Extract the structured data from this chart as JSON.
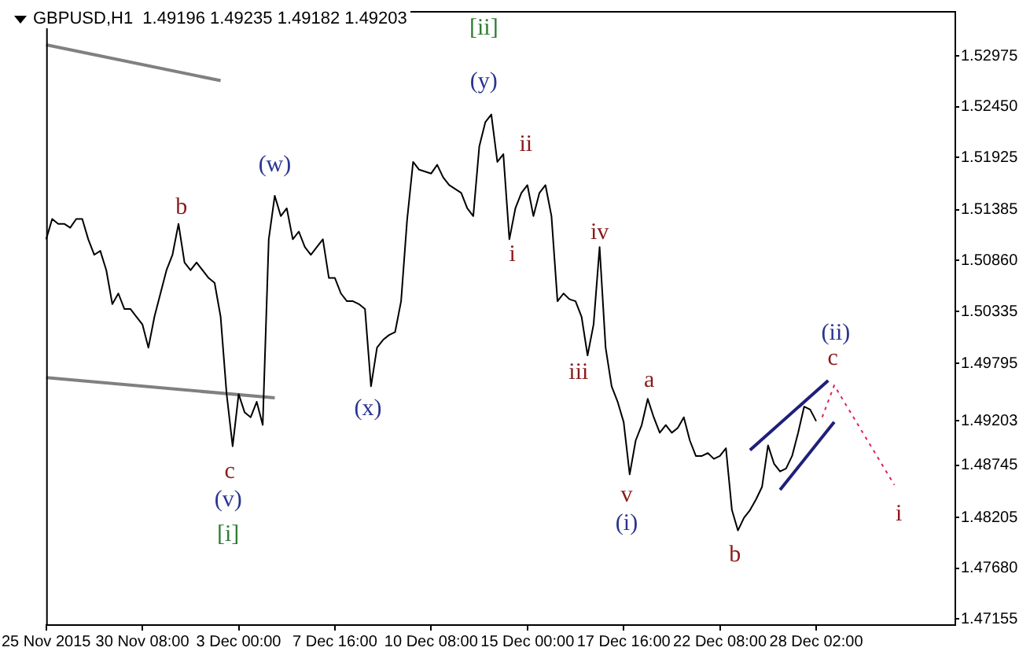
{
  "chart_data": {
    "type": "line",
    "title": "GBPUSD,H1  1.49196 1.49235 1.49182 1.49203",
    "categories": [
      "25 Nov 2015",
      null,
      null,
      null,
      null,
      null,
      null,
      null,
      null,
      null,
      null,
      null,
      null,
      null,
      null,
      null,
      "30 Nov 08:00",
      null,
      null,
      null,
      null,
      null,
      null,
      null,
      null,
      null,
      null,
      null,
      null,
      null,
      null,
      null,
      "3 Dec 00:00",
      null,
      null,
      null,
      null,
      null,
      null,
      null,
      null,
      null,
      null,
      null,
      null,
      null,
      null,
      null,
      "7 Dec 16:00",
      null,
      null,
      null,
      null,
      null,
      null,
      null,
      null,
      null,
      null,
      null,
      null,
      null,
      null,
      null,
      "10 Dec 08:00",
      null,
      null,
      null,
      null,
      null,
      null,
      null,
      null,
      null,
      null,
      null,
      null,
      null,
      null,
      null,
      "15 Dec 00:00",
      null,
      null,
      null,
      null,
      null,
      null,
      null,
      null,
      null,
      null,
      null,
      null,
      null,
      null,
      null,
      "17 Dec 16:00",
      null,
      null,
      null,
      null,
      null,
      null,
      null,
      null,
      null,
      null,
      null,
      null,
      null,
      null,
      null,
      "22 Dec 08:00",
      null,
      null,
      null,
      null,
      null,
      null,
      null,
      null,
      null,
      null,
      null,
      null,
      null,
      null,
      null,
      "28 Dec 02:00",
      null,
      null,
      null,
      null,
      null,
      null,
      null,
      null,
      null,
      null,
      null,
      null,
      null,
      null,
      null,
      null,
      null,
      null,
      null,
      null,
      null,
      null,
      null
    ],
    "ylim": [
      1.471,
      1.5344
    ],
    "yticks": [
      1.52975,
      {
        "value": 1.5245,
        "label": "1.52450"
      },
      1.51925,
      1.51385,
      {
        "value": 1.5086,
        "label": "1.50860"
      },
      1.50335,
      1.49795,
      1.49203,
      1.48745,
      1.48205,
      {
        "value": 1.4768,
        "label": "1.47680"
      },
      1.47155
    ],
    "grid": false,
    "legend": false,
    "marker": "none",
    "series": [
      {
        "color": "#000000",
        "values": [
          1.5108,
          1.5129,
          1.5124,
          1.5124,
          1.512,
          1.5129,
          1.5129,
          1.5108,
          1.5092,
          1.5096,
          1.5076,
          1.5041,
          1.5052,
          1.5036,
          1.5036,
          1.5028,
          1.502,
          1.4996,
          1.5028,
          1.5052,
          1.5076,
          1.5092,
          1.5124,
          1.5084,
          1.5076,
          1.5084,
          1.5076,
          1.5068,
          1.5063,
          1.5028,
          1.4948,
          1.4894,
          1.4948,
          1.4929,
          1.4924,
          1.494,
          1.4916,
          1.5108,
          1.5153,
          1.5132,
          1.514,
          1.5108,
          1.5116,
          1.51,
          1.5092,
          1.51,
          1.5108,
          1.5068,
          1.5068,
          1.5052,
          1.5044,
          1.5044,
          1.5041,
          1.5036,
          1.4956,
          1.4996,
          1.5004,
          1.5009,
          1.5012,
          1.5044,
          1.5128,
          1.5188,
          1.518,
          1.5178,
          1.5176,
          1.5185,
          1.5172,
          1.5164,
          1.516,
          1.5156,
          1.514,
          1.5132,
          1.5204,
          1.5229,
          1.5237,
          1.5188,
          1.5196,
          1.5108,
          1.514,
          1.5156,
          1.5164,
          1.5132,
          1.5156,
          1.5164,
          1.5132,
          1.5044,
          1.5052,
          1.5046,
          1.5044,
          1.5028,
          1.4988,
          1.502,
          1.51,
          1.4996,
          1.4956,
          1.494,
          1.4919,
          1.4865,
          1.49,
          1.4916,
          1.4943,
          1.4924,
          1.4908,
          1.4916,
          1.4908,
          1.4913,
          1.4924,
          1.49,
          1.4884,
          1.4884,
          1.4887,
          1.4881,
          1.4884,
          1.4892,
          1.4828,
          1.4807,
          1.482,
          1.4828,
          1.4839,
          1.4852,
          1.4895,
          1.4876,
          1.4868,
          1.4871,
          1.4884,
          1.4908,
          1.4935,
          1.4932,
          1.492,
          null,
          null,
          null,
          null,
          null,
          null,
          null,
          null,
          null,
          null,
          null,
          null,
          null,
          null,
          null,
          null,
          null,
          null,
          null,
          null,
          null,
          null,
          null
        ]
      },
      {
        "color": "#808080",
        "values": [
          1.5309,
          null,
          null,
          null,
          null,
          null,
          null,
          null,
          null,
          null,
          null,
          null,
          null,
          null,
          null,
          null,
          null,
          null,
          null,
          null,
          null,
          null,
          null,
          null,
          null,
          null,
          null,
          null,
          null,
          1.5272,
          null,
          null,
          null,
          null,
          null,
          null,
          null,
          null,
          null,
          null,
          null,
          null,
          null,
          null,
          null,
          null,
          null,
          null,
          null,
          null,
          null,
          null,
          null,
          null,
          null,
          null,
          null,
          null,
          null,
          null,
          null,
          null,
          null,
          null,
          null,
          null,
          null,
          null,
          null,
          null,
          null,
          null,
          null,
          null,
          null,
          null,
          null,
          null,
          null,
          null,
          null,
          null,
          null,
          null,
          null,
          null,
          null,
          null,
          null,
          null,
          null,
          null,
          null,
          null,
          null,
          null,
          null,
          null,
          null,
          null,
          null,
          null,
          null,
          null,
          null,
          null,
          null,
          null,
          null,
          null,
          null,
          null,
          null,
          null,
          null,
          null,
          null,
          null,
          null,
          null,
          null,
          null,
          null,
          null,
          null,
          null,
          null,
          null,
          null,
          null,
          null,
          null,
          null,
          null,
          null,
          null,
          null,
          null,
          null,
          null,
          null,
          null,
          null,
          null,
          null,
          null,
          null,
          null,
          null,
          null,
          null,
          null
        ]
      },
      {
        "color": "#808080",
        "values": [
          1.4965,
          null,
          null,
          null,
          null,
          null,
          null,
          null,
          null,
          null,
          null,
          null,
          null,
          null,
          null,
          null,
          null,
          null,
          null,
          null,
          null,
          null,
          null,
          null,
          null,
          null,
          null,
          null,
          null,
          null,
          null,
          null,
          null,
          null,
          null,
          null,
          null,
          null,
          1.4944,
          null,
          null,
          null,
          null,
          null,
          null,
          null,
          null,
          null,
          null,
          null,
          null,
          null,
          null,
          null,
          null,
          null,
          null,
          null,
          null,
          null,
          null,
          null,
          null,
          null,
          null,
          null,
          null,
          null,
          null,
          null,
          null,
          null,
          null,
          null,
          null,
          null,
          null,
          null,
          null,
          null,
          null,
          null,
          null,
          null,
          null,
          null,
          null,
          null,
          null,
          null,
          null,
          null,
          null,
          null,
          null,
          null,
          null,
          null,
          null,
          null,
          null,
          null,
          null,
          null,
          null,
          null,
          null,
          null,
          null,
          null,
          null,
          null,
          null,
          null,
          null,
          null,
          null,
          null,
          null,
          null,
          null,
          null,
          null,
          null,
          null,
          null,
          null,
          null,
          null,
          null,
          null,
          null,
          null,
          null,
          null,
          null,
          null,
          null,
          null,
          null,
          null,
          null,
          null,
          null,
          null,
          null,
          null,
          null,
          null,
          null,
          null,
          null
        ]
      },
      {
        "color": "#1f1f7a",
        "values": [
          null,
          null,
          null,
          null,
          null,
          null,
          null,
          null,
          null,
          null,
          null,
          null,
          null,
          null,
          null,
          null,
          null,
          null,
          null,
          null,
          null,
          null,
          null,
          null,
          null,
          null,
          null,
          null,
          null,
          null,
          null,
          null,
          null,
          null,
          null,
          null,
          null,
          null,
          null,
          null,
          null,
          null,
          null,
          null,
          null,
          null,
          null,
          null,
          null,
          null,
          null,
          null,
          null,
          null,
          null,
          null,
          null,
          null,
          null,
          null,
          null,
          null,
          null,
          null,
          null,
          null,
          null,
          null,
          null,
          null,
          null,
          null,
          null,
          null,
          null,
          null,
          null,
          null,
          null,
          null,
          null,
          null,
          null,
          null,
          null,
          null,
          null,
          null,
          null,
          null,
          null,
          null,
          null,
          null,
          null,
          null,
          null,
          null,
          null,
          null,
          null,
          null,
          null,
          null,
          null,
          null,
          null,
          null,
          null,
          null,
          null,
          null,
          null,
          null,
          null,
          null,
          null,
          1.489,
          null,
          null,
          null,
          null,
          null,
          null,
          null,
          null,
          null,
          null,
          null,
          null,
          1.4962,
          null,
          null,
          null,
          null,
          null,
          null,
          null,
          null,
          null,
          null,
          null,
          null,
          null,
          null,
          null,
          null,
          null,
          null,
          null,
          null,
          null
        ]
      },
      {
        "color": "#1f1f7a",
        "values": [
          null,
          null,
          null,
          null,
          null,
          null,
          null,
          null,
          null,
          null,
          null,
          null,
          null,
          null,
          null,
          null,
          null,
          null,
          null,
          null,
          null,
          null,
          null,
          null,
          null,
          null,
          null,
          null,
          null,
          null,
          null,
          null,
          null,
          null,
          null,
          null,
          null,
          null,
          null,
          null,
          null,
          null,
          null,
          null,
          null,
          null,
          null,
          null,
          null,
          null,
          null,
          null,
          null,
          null,
          null,
          null,
          null,
          null,
          null,
          null,
          null,
          null,
          null,
          null,
          null,
          null,
          null,
          null,
          null,
          null,
          null,
          null,
          null,
          null,
          null,
          null,
          null,
          null,
          null,
          null,
          null,
          null,
          null,
          null,
          null,
          null,
          null,
          null,
          null,
          null,
          null,
          null,
          null,
          null,
          null,
          null,
          null,
          null,
          null,
          null,
          null,
          null,
          null,
          null,
          null,
          null,
          null,
          null,
          null,
          null,
          null,
          null,
          null,
          null,
          null,
          null,
          null,
          null,
          null,
          null,
          null,
          null,
          1.4849,
          null,
          null,
          null,
          null,
          null,
          null,
          null,
          null,
          1.4919,
          null,
          null,
          null,
          null,
          null,
          null,
          null,
          null,
          null,
          null,
          null,
          null,
          null,
          null,
          null,
          null,
          null,
          null,
          null,
          null
        ]
      },
      {
        "color": "#e0205a",
        "line_style": "dotted",
        "values": [
          null,
          null,
          null,
          null,
          null,
          null,
          null,
          null,
          null,
          null,
          null,
          null,
          null,
          null,
          null,
          null,
          null,
          null,
          null,
          null,
          null,
          null,
          null,
          null,
          null,
          null,
          null,
          null,
          null,
          null,
          null,
          null,
          null,
          null,
          null,
          null,
          null,
          null,
          null,
          null,
          null,
          null,
          null,
          null,
          null,
          null,
          null,
          null,
          null,
          null,
          null,
          null,
          null,
          null,
          null,
          null,
          null,
          null,
          null,
          null,
          null,
          null,
          null,
          null,
          null,
          null,
          null,
          null,
          null,
          null,
          null,
          null,
          null,
          null,
          null,
          null,
          null,
          null,
          null,
          null,
          null,
          null,
          null,
          null,
          null,
          null,
          null,
          null,
          null,
          null,
          null,
          null,
          null,
          null,
          null,
          null,
          null,
          null,
          null,
          null,
          null,
          null,
          null,
          null,
          null,
          null,
          null,
          null,
          null,
          null,
          null,
          null,
          null,
          null,
          null,
          null,
          null,
          null,
          null,
          null,
          null,
          null,
          null,
          null,
          null,
          null,
          null,
          null,
          null,
          1.4924,
          null,
          1.4957,
          null,
          null,
          null,
          null,
          null,
          null,
          null,
          null,
          null,
          1.4854,
          null,
          null,
          null,
          null,
          null,
          null,
          null,
          null,
          null,
          null
        ]
      }
    ],
    "annotations": [
      "b",
      "c",
      "(v)",
      "[i]",
      "(w)",
      "(x)",
      "[ii]",
      "(y)",
      "i",
      "ii",
      "iii",
      "iv",
      "v",
      "(i)",
      "a",
      "b",
      {
        "text": "c",
        "y": 1.4962
      },
      "(ii)",
      "i"
    ]
  }
}
